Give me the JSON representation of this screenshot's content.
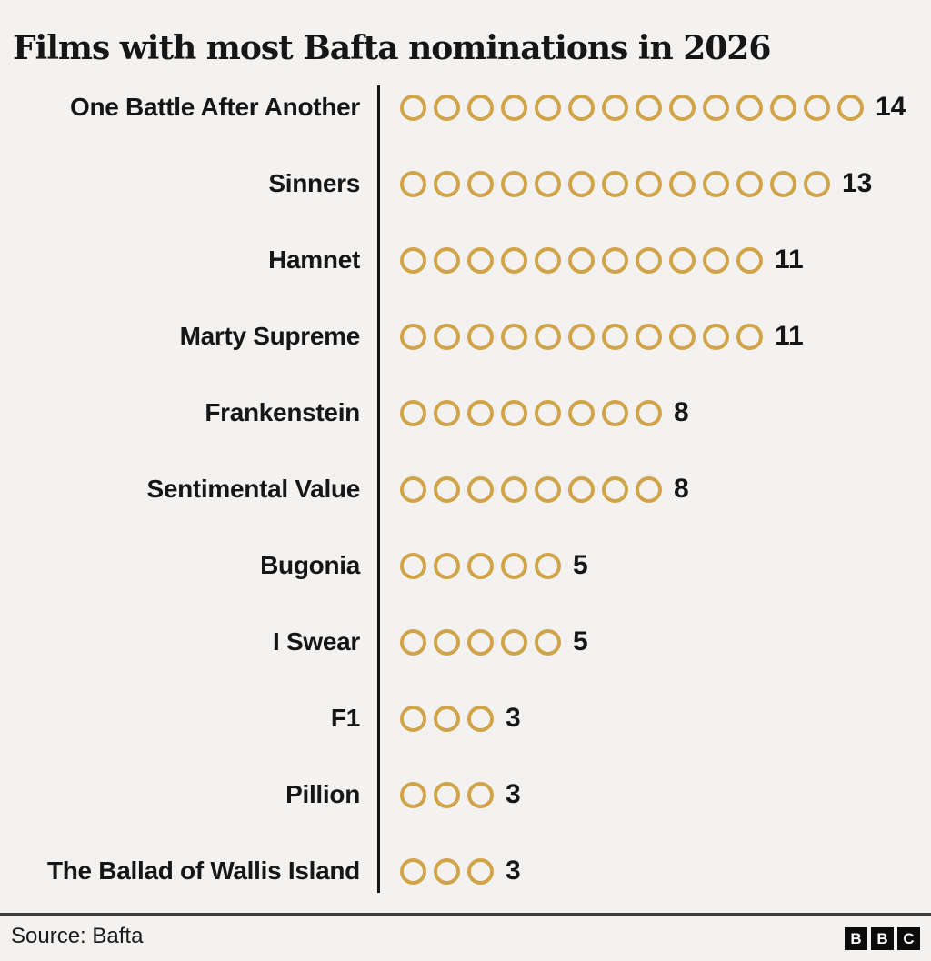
{
  "title": "Films with most Bafta nominations in 2026",
  "chart_data": {
    "type": "bar",
    "style": "pictogram-rings",
    "orientation": "horizontal",
    "categories": [
      "One Battle After Another",
      "Sinners",
      "Hamnet",
      "Marty Supreme",
      "Frankenstein",
      "Sentimental Value",
      "Bugonia",
      "I Swear",
      "F1",
      "Pillion",
      "The Ballad of Wallis Island"
    ],
    "values": [
      14,
      13,
      11,
      11,
      8,
      8,
      5,
      5,
      3,
      3,
      3
    ],
    "title": "Films with most Bafta nominations in 2026",
    "xlabel": "",
    "ylabel": "",
    "xlim": [
      0,
      14
    ],
    "grid": false,
    "legend_position": "none",
    "unit": "one ring = one nomination, value label at bar end"
  },
  "footer": {
    "source": "Source: Bafta",
    "logo_letters": [
      "B",
      "B",
      "C"
    ]
  },
  "colors": {
    "background": "#F3F2F0",
    "ring": "#D2A449",
    "text": "#161616",
    "axis": "#141414",
    "separator": "#3D3D3D",
    "logo_bg": "#0B0B0B",
    "logo_text": "#FFFFFF"
  }
}
